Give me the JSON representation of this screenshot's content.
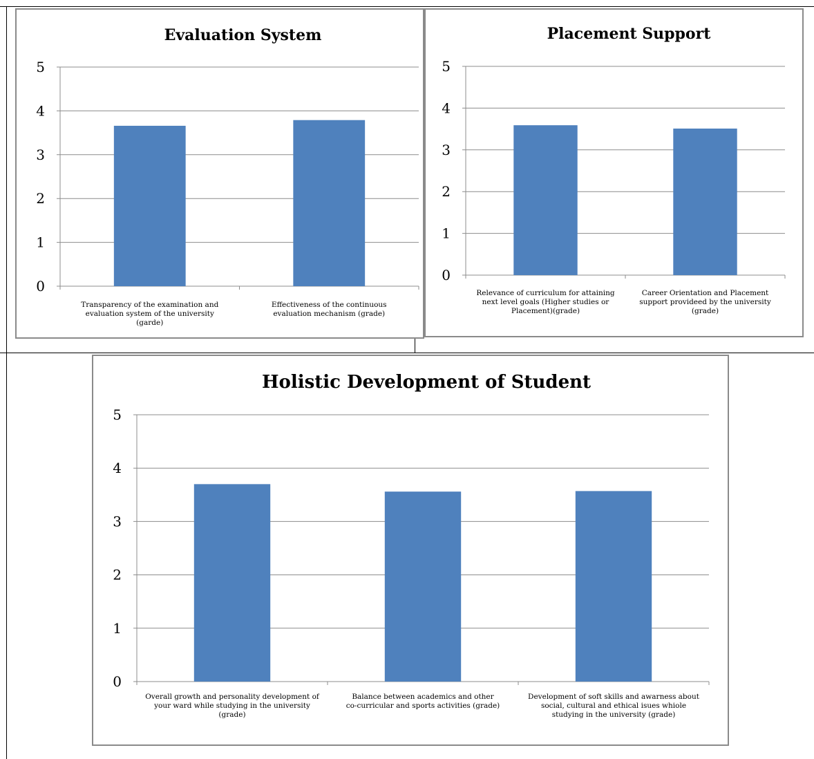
{
  "colors": {
    "bar": "#4f81bd",
    "grid": "#8c8c8c",
    "frame": "#8a8a8a"
  },
  "chart_data": [
    {
      "type": "bar",
      "title": "Evaluation System",
      "categories": [
        "Transparency of the examination and evaluation system of the university (garde)",
        "Effectiveness of the continuous evaluation mechanism (grade)"
      ],
      "values": [
        3.66,
        3.79
      ],
      "ylim": [
        0,
        5
      ],
      "yticks": [
        0,
        1,
        2,
        3,
        4,
        5
      ],
      "grid": true,
      "legend": "none"
    },
    {
      "type": "bar",
      "title": "Placement Support",
      "categories": [
        "Relevance of curriculum for attaining next level goals (Higher studies or Placement)(grade)",
        "Career Orientation and Placement support provideed by the university (grade)"
      ],
      "values": [
        3.59,
        3.51
      ],
      "ylim": [
        0,
        5
      ],
      "yticks": [
        0,
        1,
        2,
        3,
        4,
        5
      ],
      "grid": true,
      "legend": "none"
    },
    {
      "type": "bar",
      "title": "Holistic Development of Student",
      "categories": [
        "Overall growth and personality development of your ward while studying in the university (grade)",
        "Balance between academics and other co-curricular and sports activities (grade)",
        "Development of soft skills and awarness about social, cultural and ethical isues whiole studying in the university (grade)"
      ],
      "values": [
        3.7,
        3.56,
        3.57
      ],
      "ylim": [
        0,
        5
      ],
      "yticks": [
        0,
        1,
        2,
        3,
        4,
        5
      ],
      "grid": true,
      "legend": "none"
    }
  ]
}
